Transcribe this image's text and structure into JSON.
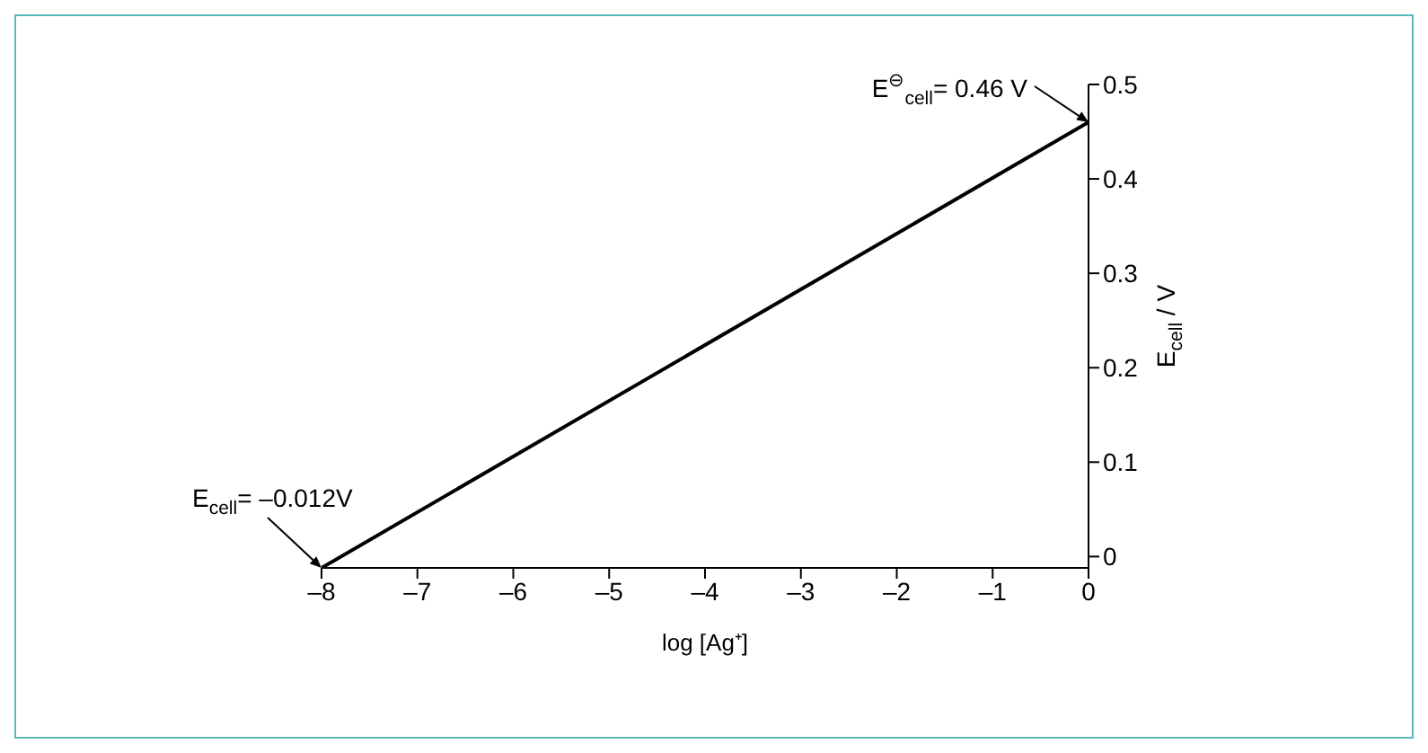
{
  "chart_data": {
    "type": "line",
    "xlabel": "log [Ag⁺]",
    "ylabel": "E$_{cell}$ / V",
    "series": [
      {
        "color": "#000000",
        "x": [
          -8,
          0
        ],
        "values": [
          -0.012,
          0.46
        ]
      }
    ],
    "xlim": [
      -8,
      0
    ],
    "ylim": [
      -0.012,
      0.5
    ],
    "xticks": [
      {
        "value": -8,
        "label": "–8"
      },
      {
        "value": -7,
        "label": "–7"
      },
      {
        "value": -6,
        "label": "–6"
      },
      {
        "value": -5,
        "label": "–5"
      },
      {
        "value": -4,
        "label": "–4"
      },
      {
        "value": -3,
        "label": "–3"
      },
      {
        "value": -2,
        "label": "–2"
      },
      {
        "value": -1,
        "label": "–1"
      },
      0
    ],
    "yticks": [
      0,
      0.1,
      0.2,
      0.3,
      0.4,
      0.5
    ],
    "grid": false,
    "legend": false,
    "marker": "none",
    "line_style": "solid",
    "annotations": [
      {
        "text": "E$_{cell}$= –0.012V",
        "x": -8,
        "y": -0.012
      },
      {
        "text": "E$^{⊖}$$_{cell}$= 0.46 V",
        "x": 0,
        "y": 0.46
      }
    ]
  }
}
